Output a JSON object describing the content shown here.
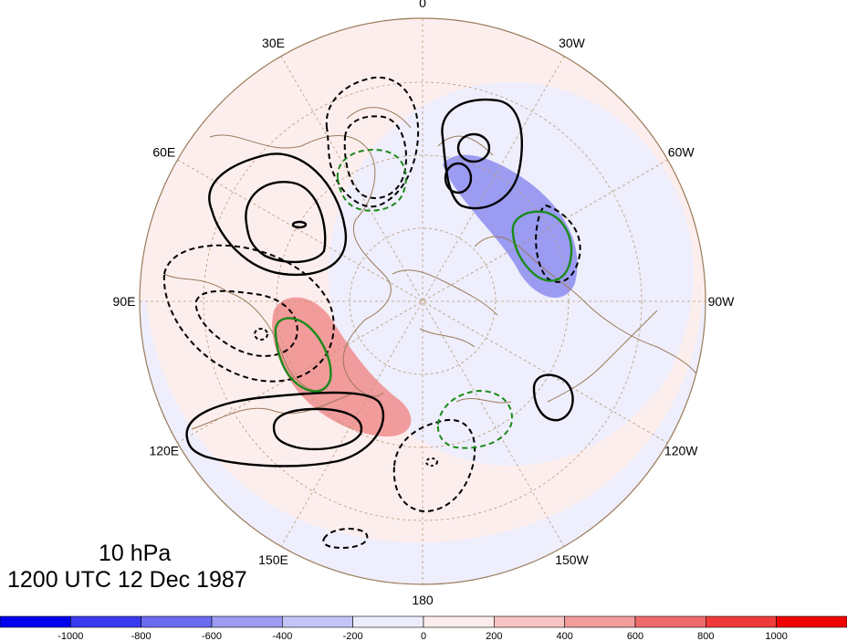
{
  "map": {
    "projection": "north-polar-stereographic",
    "longitude_labels": [
      {
        "text": "0",
        "lon": 0
      },
      {
        "text": "30W",
        "lon": -30
      },
      {
        "text": "60W",
        "lon": -60
      },
      {
        "text": "90W",
        "lon": -90
      },
      {
        "text": "120W",
        "lon": -120
      },
      {
        "text": "150W",
        "lon": -150
      },
      {
        "text": "180",
        "lon": 180
      },
      {
        "text": "150E",
        "lon": 150
      },
      {
        "text": "120E",
        "lon": 120
      },
      {
        "text": "90E",
        "lon": 90
      },
      {
        "text": "60E",
        "lon": 60
      },
      {
        "text": "30E",
        "lon": 30
      }
    ],
    "colors": {
      "background_positive": "#fdeeee",
      "background_negative": "#eeeefc",
      "negative_anomaly": "#8c8cf0",
      "positive_anomaly": "#f08c8c",
      "coastline": "#9a7b5a",
      "graticule": "#b89a7a",
      "contour_black": "#000000",
      "contour_green": "#1a8a1a"
    }
  },
  "annotation": {
    "level": "10 hPa",
    "time": "1200 UTC 12 Dec 1987"
  },
  "colorbar": {
    "labels": [
      "-1000",
      "-800",
      "-600",
      "-400",
      "-200",
      "0",
      "200",
      "400",
      "600",
      "800",
      "1000"
    ],
    "colors": [
      "#0000f0",
      "#3a3af0",
      "#6b6bf0",
      "#9c9cf3",
      "#c4c4f7",
      "#ececfc",
      "#fcecec",
      "#f7c4c4",
      "#f39c9c",
      "#f06b6b",
      "#f03a3a",
      "#f00000"
    ]
  }
}
